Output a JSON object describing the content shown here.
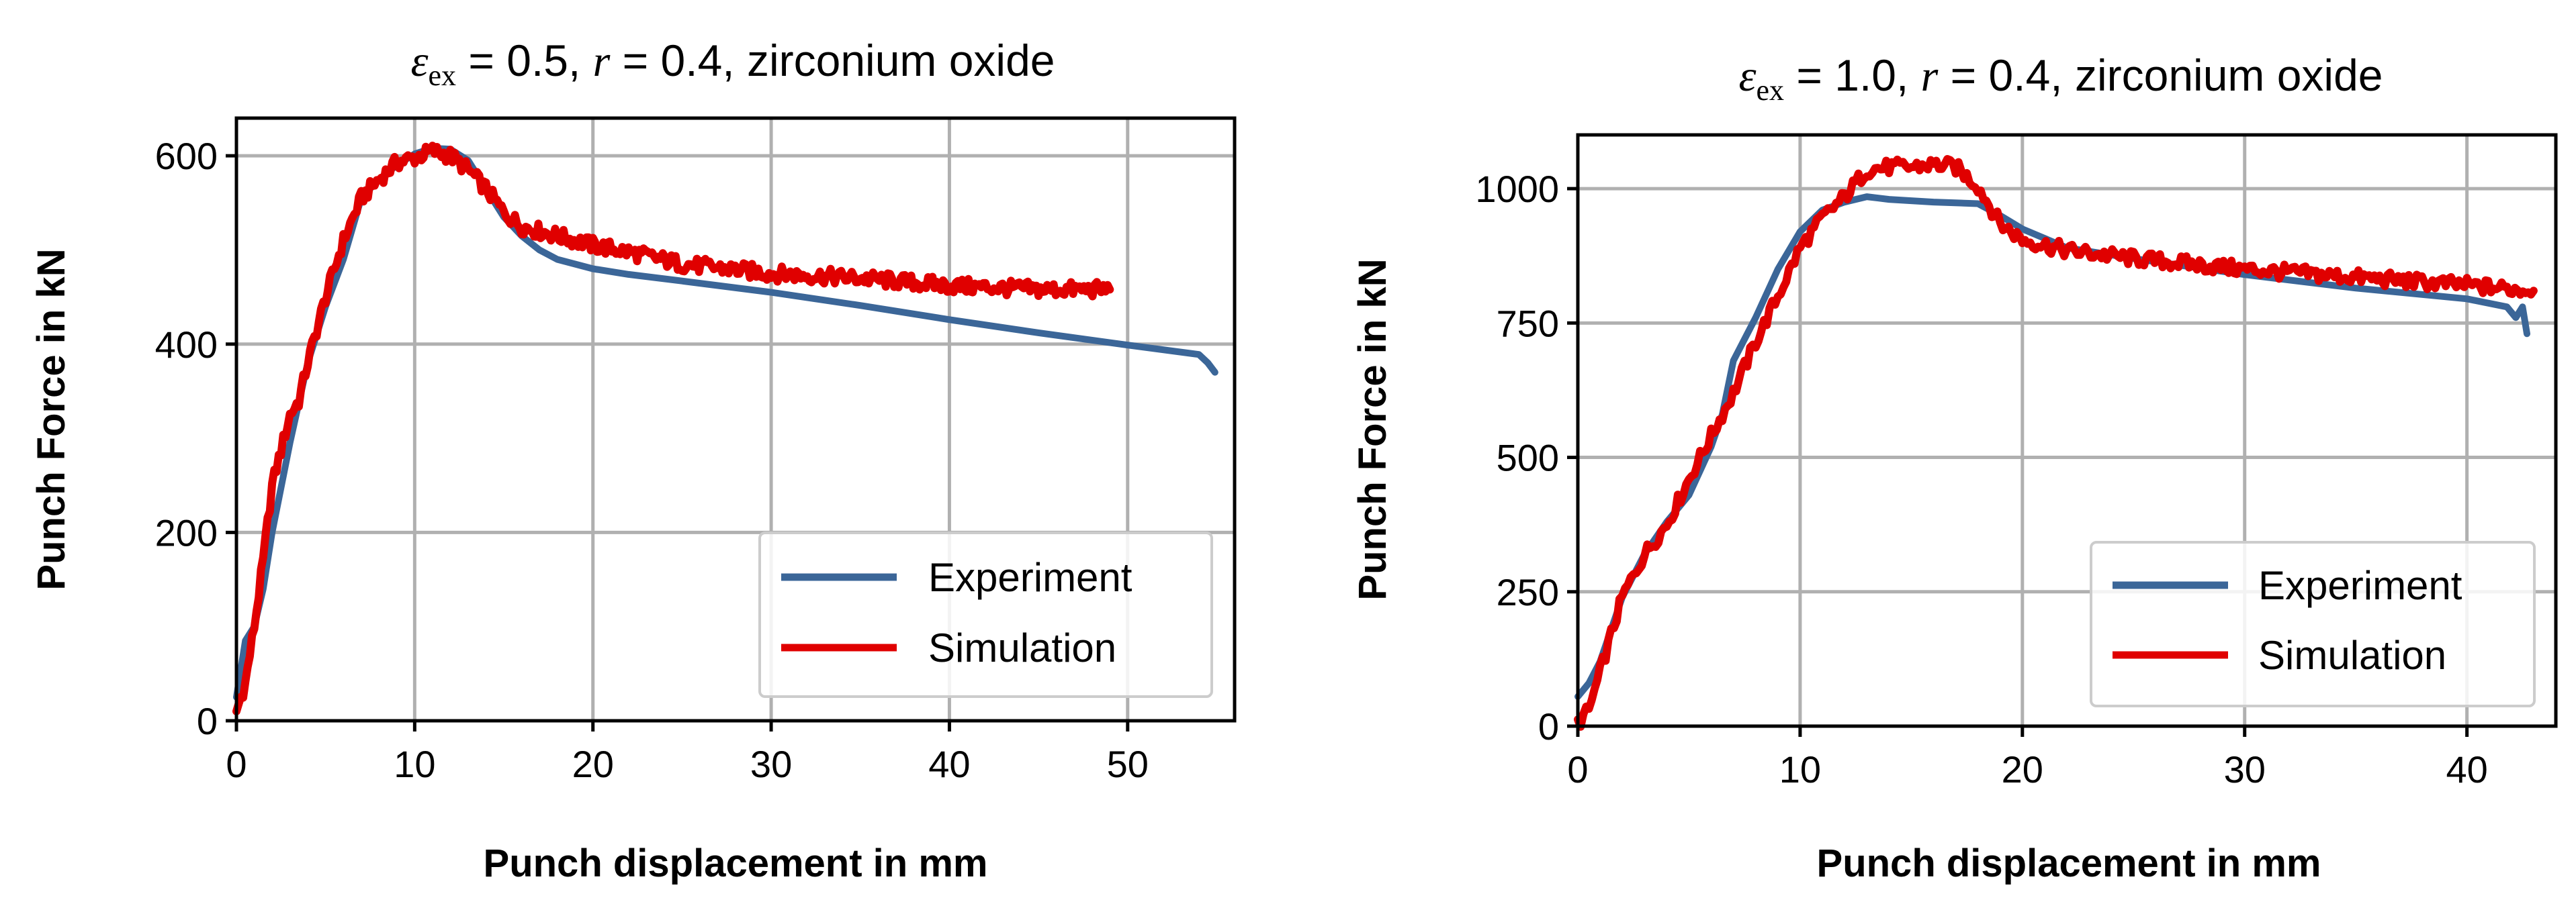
{
  "chart_data": [
    {
      "type": "line",
      "title": "ε_ex = 0.5, r = 0.4, zirconium oxide",
      "title_parts": {
        "symbol": "ε",
        "subscript": "ex",
        "eq1": " = 0.5, ",
        "r": "r",
        "rest": " = 0.4, zirconium oxide"
      },
      "xlabel": "Punch displacement in mm",
      "ylabel": "Punch Force in kN",
      "xlim": [
        0,
        56
      ],
      "ylim": [
        0,
        640
      ],
      "xticks": [
        0,
        10,
        20,
        30,
        40,
        50
      ],
      "yticks": [
        0,
        200,
        400,
        600
      ],
      "grid": true,
      "legend": {
        "location": "lower right",
        "entries": [
          "Experiment",
          "Simulation"
        ]
      },
      "series": [
        {
          "name": "Experiment",
          "color": "#3b6698",
          "x": [
            0,
            0.5,
            1,
            1.5,
            2,
            3,
            4,
            5,
            6,
            7,
            8,
            9,
            10,
            11,
            12,
            13,
            14,
            15,
            16,
            17,
            18,
            20,
            22,
            25,
            30,
            35,
            40,
            45,
            50,
            54,
            54.5,
            54.9
          ],
          "y": [
            25,
            85,
            100,
            140,
            200,
            295,
            380,
            440,
            490,
            555,
            575,
            590,
            602,
            608,
            607,
            595,
            565,
            535,
            515,
            500,
            490,
            480,
            474,
            467,
            455,
            441,
            426,
            412,
            399,
            389,
            380,
            370
          ]
        },
        {
          "name": "Simulation",
          "color": "#e00000",
          "x": [
            0,
            0.5,
            1,
            1.5,
            2,
            3,
            3.5,
            4,
            5,
            6,
            7,
            8,
            9,
            10,
            11,
            12,
            13,
            14,
            15,
            16,
            18,
            20,
            22,
            25,
            30,
            35,
            40,
            45,
            49
          ],
          "y": [
            10,
            40,
            100,
            170,
            250,
            325,
            340,
            380,
            450,
            510,
            555,
            575,
            593,
            598,
            605,
            600,
            585,
            565,
            540,
            525,
            515,
            505,
            498,
            485,
            475,
            470,
            462,
            458,
            458
          ]
        }
      ]
    },
    {
      "type": "line",
      "title": "ε_ex = 1.0, r = 0.4, zirconium oxide",
      "title_parts": {
        "symbol": "ε",
        "subscript": "ex",
        "eq1": " = 1.0, ",
        "r": "r",
        "rest": " = 0.4, zirconium oxide"
      },
      "xlabel": "Punch displacement in mm",
      "ylabel": "Punch Force in kN",
      "xlim": [
        0,
        44
      ],
      "ylim": [
        0,
        1100
      ],
      "xticks": [
        0,
        10,
        20,
        30,
        40
      ],
      "yticks": [
        0,
        250,
        500,
        750,
        1000
      ],
      "grid": true,
      "legend": {
        "location": "lower right",
        "entries": [
          "Experiment",
          "Simulation"
        ]
      },
      "series": [
        {
          "name": "Experiment",
          "color": "#3b6698",
          "x": [
            0,
            0.5,
            1,
            2,
            3,
            4,
            5,
            6,
            6.5,
            7,
            8,
            9,
            10,
            11,
            12,
            13,
            14,
            16,
            18,
            19,
            20,
            22,
            25,
            30,
            35,
            40,
            41.8,
            42.2,
            42.5,
            42.7
          ],
          "y": [
            55,
            80,
            120,
            240,
            320,
            380,
            430,
            520,
            580,
            680,
            760,
            850,
            920,
            960,
            975,
            985,
            980,
            975,
            972,
            950,
            925,
            890,
            870,
            840,
            815,
            795,
            780,
            760,
            780,
            730
          ]
        },
        {
          "name": "Simulation",
          "color": "#e00000",
          "x": [
            0,
            0.5,
            1,
            2,
            3,
            4,
            5,
            6,
            7,
            8,
            9,
            10,
            11,
            12,
            13,
            14,
            15,
            16,
            17,
            18,
            19,
            20,
            22,
            25,
            30,
            35,
            40,
            43
          ],
          "y": [
            5,
            30,
            100,
            240,
            320,
            375,
            460,
            540,
            620,
            715,
            800,
            890,
            945,
            985,
            1035,
            1040,
            1040,
            1045,
            1040,
            1005,
            935,
            905,
            885,
            870,
            850,
            835,
            820,
            810
          ]
        }
      ]
    }
  ]
}
